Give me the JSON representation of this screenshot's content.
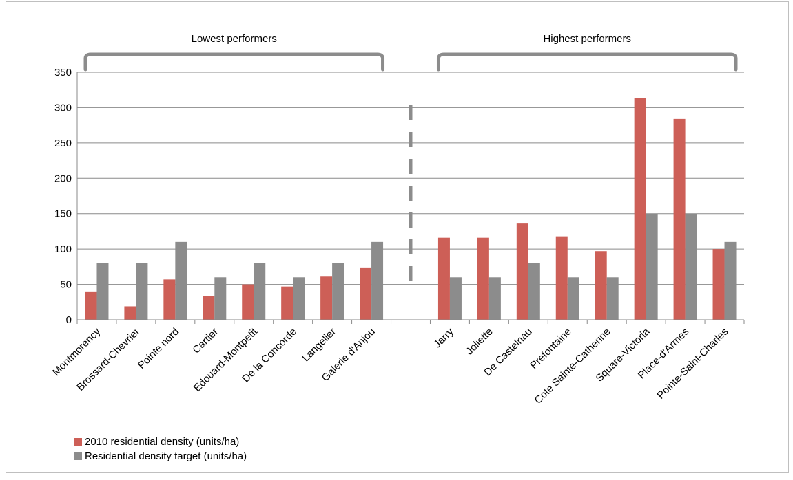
{
  "chart_data": {
    "type": "bar",
    "title": "",
    "xlabel": "",
    "ylabel": "",
    "ylim": [
      0,
      350
    ],
    "yticks": [
      0,
      50,
      100,
      150,
      200,
      250,
      300,
      350
    ],
    "grid": true,
    "legend_position": "bottom-left",
    "categories": [
      "Montmorency",
      "Brossard-Chevrier",
      "Pointe nord",
      "Cartier",
      "Edouard-Montpetit",
      "De la Concorde",
      "Langelier",
      "Galerie d'Anjou",
      "",
      "Jarry",
      "Joliette",
      "De Castelnau",
      "Prefontaine",
      "Cote Sainte-Catherine",
      "Square-Victoria",
      "Place-d'Armes",
      "Pointe-Saint-Charles"
    ],
    "series": [
      {
        "name": "2010 residential density (units/ha)",
        "color": "#cd5f57",
        "values": [
          40,
          19,
          57,
          34,
          50,
          47,
          61,
          74,
          null,
          116,
          116,
          136,
          118,
          97,
          314,
          284,
          100
        ]
      },
      {
        "name": "Residential density target (units/ha)",
        "color": "#8c8c8c",
        "values": [
          80,
          80,
          110,
          60,
          80,
          60,
          80,
          110,
          null,
          60,
          60,
          80,
          60,
          60,
          150,
          150,
          110
        ]
      }
    ],
    "annotations": [
      {
        "label": "Lowest performers",
        "categories": [
          0,
          7
        ]
      },
      {
        "label": "Highest performers",
        "categories": [
          9,
          16
        ]
      }
    ],
    "divider": {
      "style": "dashed",
      "between_categories": [
        7,
        9
      ]
    }
  }
}
